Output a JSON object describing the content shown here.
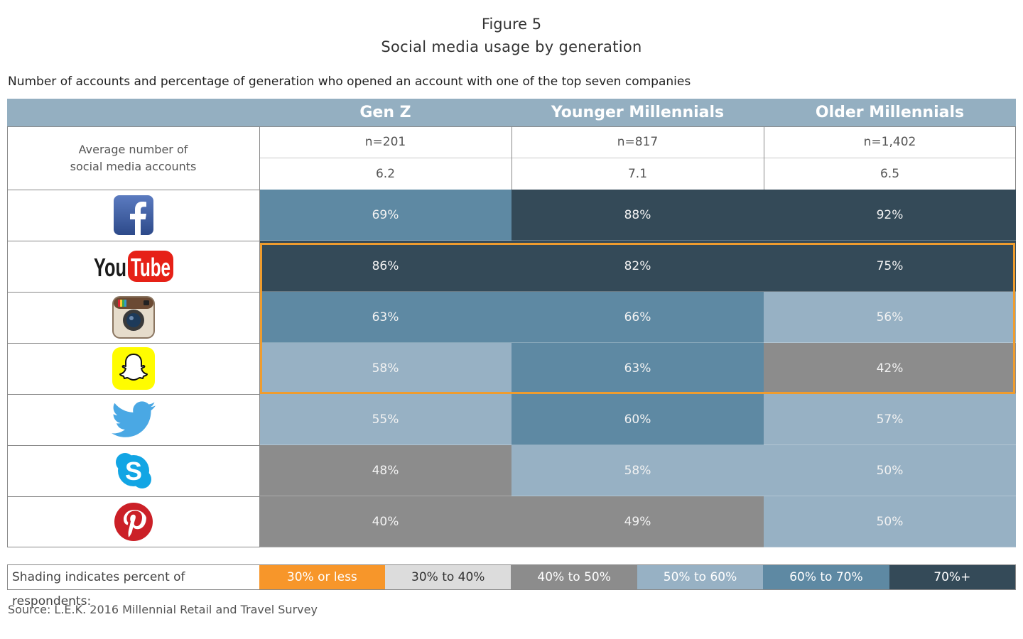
{
  "figure": {
    "label": "Figure 5",
    "title": "Social media usage by generation",
    "subtitle": "Number of accounts and percentage of generation who opened an account with one of the top seven companies",
    "source": "Source: L.E.K. 2016 Millennial Retail and Travel Survey"
  },
  "chart_data": {
    "type": "table",
    "columns": [
      "Gen Z",
      "Younger Millennials",
      "Older Millennials"
    ],
    "sample_sizes": [
      "n=201",
      "n=817",
      "n=1,402"
    ],
    "avg_accounts_label": "Average number of social media accounts",
    "avg_accounts": [
      "6.2",
      "7.1",
      "6.5"
    ],
    "rows": [
      {
        "platform": "Facebook",
        "icon": "facebook-icon",
        "values": [
          "69%",
          "88%",
          "92%"
        ]
      },
      {
        "platform": "YouTube",
        "icon": "youtube-icon",
        "values": [
          "86%",
          "82%",
          "75%"
        ]
      },
      {
        "platform": "Instagram",
        "icon": "instagram-icon",
        "values": [
          "63%",
          "66%",
          "56%"
        ]
      },
      {
        "platform": "Snapchat",
        "icon": "snapchat-icon",
        "values": [
          "58%",
          "63%",
          "42%"
        ]
      },
      {
        "platform": "Twitter",
        "icon": "twitter-icon",
        "values": [
          "55%",
          "60%",
          "57%"
        ]
      },
      {
        "platform": "Skype",
        "icon": "skype-icon",
        "values": [
          "48%",
          "58%",
          "50%"
        ]
      },
      {
        "platform": "Pinterest",
        "icon": "pinterest-icon",
        "values": [
          "40%",
          "49%",
          "50%"
        ]
      }
    ],
    "highlighted_rows": [
      "YouTube",
      "Instagram",
      "Snapchat"
    ],
    "highlight_color": "#ef9c2e"
  },
  "legend": {
    "label": "Shading indicates percent of respondents:",
    "items": [
      {
        "label": "30% or less",
        "color": "#f7962a",
        "text_color": "#ffffff"
      },
      {
        "label": "30% to 40%",
        "color": "#dcdcdc",
        "text_color": "#333333"
      },
      {
        "label": "40% to 50%",
        "color": "#8c8c8c",
        "text_color": "#ffffff"
      },
      {
        "label": "50% to 60%",
        "color": "#97b1c4",
        "text_color": "#ffffff"
      },
      {
        "label": "60% to 70%",
        "color": "#5e89a3",
        "text_color": "#ffffff"
      },
      {
        "label": "70%+",
        "color": "#344a58",
        "text_color": "#ffffff"
      }
    ]
  },
  "header_color": "#94afc1"
}
